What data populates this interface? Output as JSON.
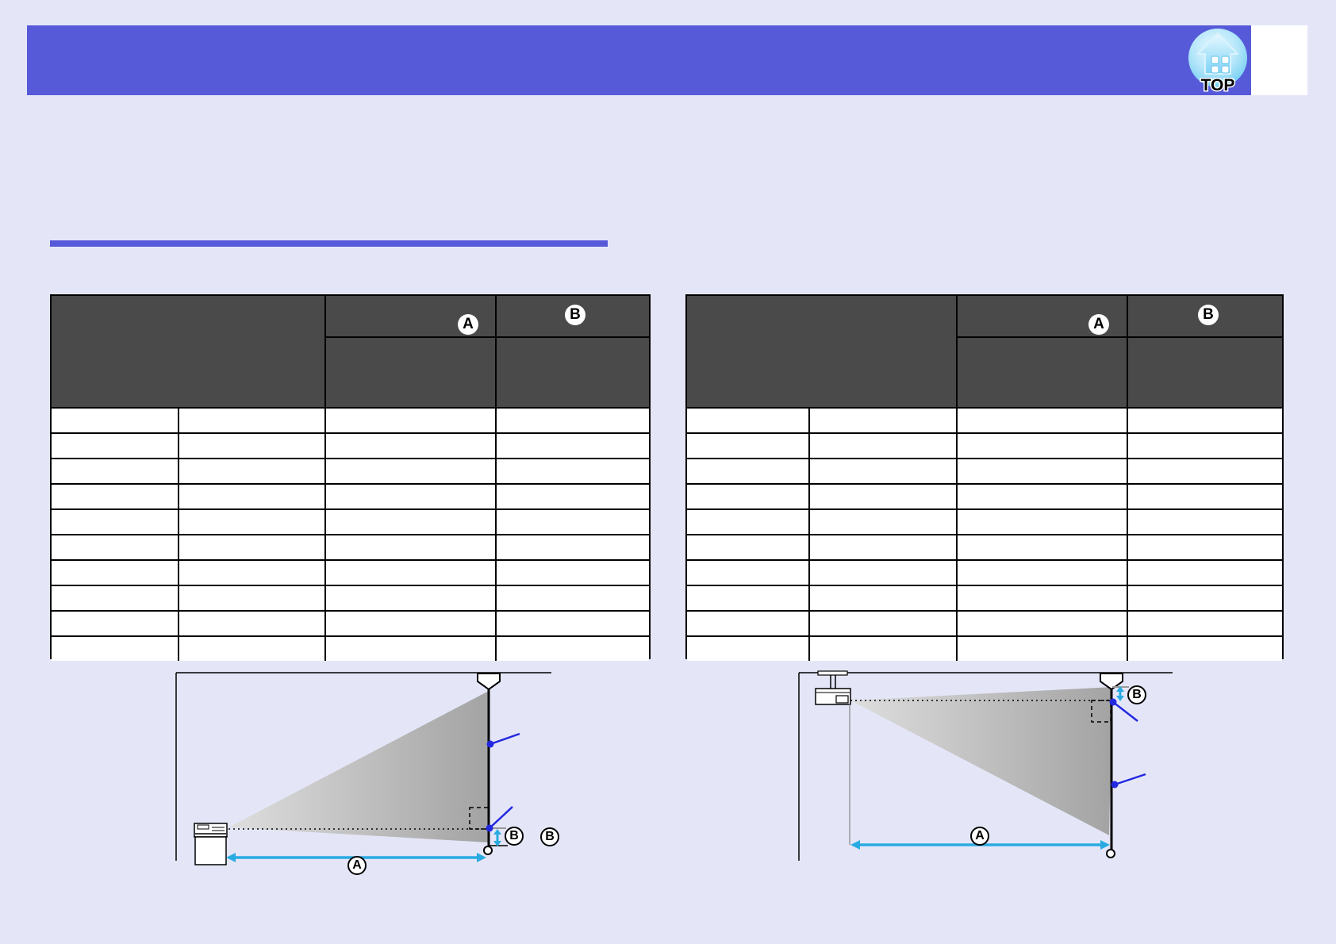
{
  "header": {
    "top_button": {
      "label": "TOP"
    }
  },
  "tables": {
    "left": {
      "col_a_label": "A",
      "col_b_label": "B",
      "rows": [
        [
          "",
          "",
          "",
          ""
        ],
        [
          "",
          "",
          "",
          ""
        ],
        [
          "",
          "",
          "",
          ""
        ],
        [
          "",
          "",
          "",
          ""
        ],
        [
          "",
          "",
          "",
          ""
        ],
        [
          "",
          "",
          "",
          ""
        ],
        [
          "",
          "",
          "",
          ""
        ],
        [
          "",
          "",
          "",
          ""
        ],
        [
          "",
          "",
          "",
          ""
        ],
        [
          "",
          "",
          "",
          ""
        ]
      ]
    },
    "right": {
      "col_a_label": "A",
      "col_b_label": "B",
      "rows": [
        [
          "",
          "",
          "",
          ""
        ],
        [
          "",
          "",
          "",
          ""
        ],
        [
          "",
          "",
          "",
          ""
        ],
        [
          "",
          "",
          "",
          ""
        ],
        [
          "",
          "",
          "",
          ""
        ],
        [
          "",
          "",
          "",
          ""
        ],
        [
          "",
          "",
          "",
          ""
        ],
        [
          "",
          "",
          "",
          ""
        ],
        [
          "",
          "",
          "",
          ""
        ],
        [
          "",
          "",
          "",
          ""
        ]
      ]
    }
  },
  "diagrams": {
    "floor": {
      "distance_label": "A",
      "offset_label": "B",
      "legend_label": "B"
    },
    "ceiling": {
      "distance_label": "A",
      "offset_label": "B"
    }
  },
  "colors": {
    "page_bg": "#e4e6f8",
    "accent_purple": "#5659d8",
    "table_header_bg": "#4a4a4a",
    "cyan_arrow": "#29abe2",
    "blue_callout": "#2328e0"
  }
}
